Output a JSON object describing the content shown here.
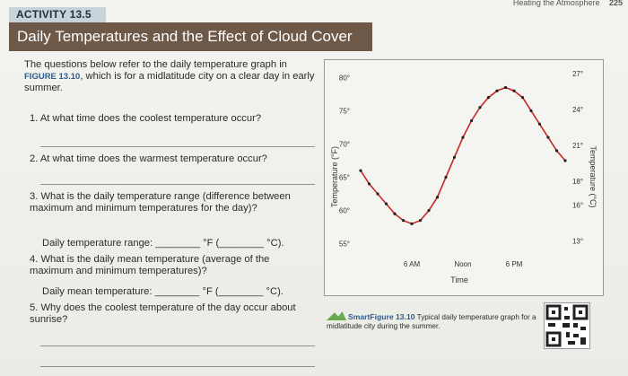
{
  "running_head": {
    "text": "Heating the Atmosphere",
    "page": "225"
  },
  "activity": "ACTIVITY 13.5",
  "title": "Daily Temperatures and the Effect of Cloud Cover",
  "intro": {
    "part1": "The questions below refer to the daily temperature graph in ",
    "figure_ref": "FIGURE 13.10",
    "part2": ", which is for a midlatitude city on a clear day in early summer."
  },
  "questions": [
    {
      "text": "1. At what time does the coolest temperature occur?"
    },
    {
      "text": "2. At what time does the warmest temperature occur?"
    },
    {
      "text": "3. What is the daily temperature range (difference between maximum and minimum temperatures for the day)?",
      "answer_label": "Daily temperature range: ________ °F (________ °C)."
    },
    {
      "text": "4. What is the daily mean temperature (average of the maximum and minimum temperatures)?",
      "answer_label": "Daily mean temperature: ________ °F (________ °C)."
    },
    {
      "text": "5. Why does the coolest temperature of the day occur about sunrise?"
    }
  ],
  "chart_data": {
    "type": "line",
    "xlabel": "Time",
    "ylabel": "Temperature (°F)",
    "y2label": "Temperature (°C)",
    "x_ticks": [
      "6 AM",
      "Noon",
      "6 PM"
    ],
    "y_ticks_f": [
      "55°",
      "60°",
      "65°",
      "70°",
      "75°",
      "80°"
    ],
    "y_ticks_c": [
      "13°",
      "16°",
      "18°",
      "21°",
      "24°",
      "27°"
    ],
    "ylim_f": [
      54,
      81
    ],
    "x_hours": [
      0,
      1,
      2,
      3,
      4,
      5,
      6,
      7,
      8,
      9,
      10,
      11,
      12,
      13,
      14,
      15,
      16,
      17,
      18,
      19,
      20,
      21,
      22,
      23,
      24
    ],
    "values_f": [
      66,
      64,
      62.5,
      61,
      59.5,
      58.5,
      58,
      58.5,
      60,
      62,
      65,
      68,
      71,
      73.5,
      75.5,
      77,
      78,
      78.5,
      78,
      77,
      75,
      73,
      71,
      69,
      67.5
    ],
    "line_color": "#c62828"
  },
  "caption": {
    "label": "SmartFigure 13.10",
    "text": " Typical daily temperature graph for a midlatitude city during the summer."
  }
}
